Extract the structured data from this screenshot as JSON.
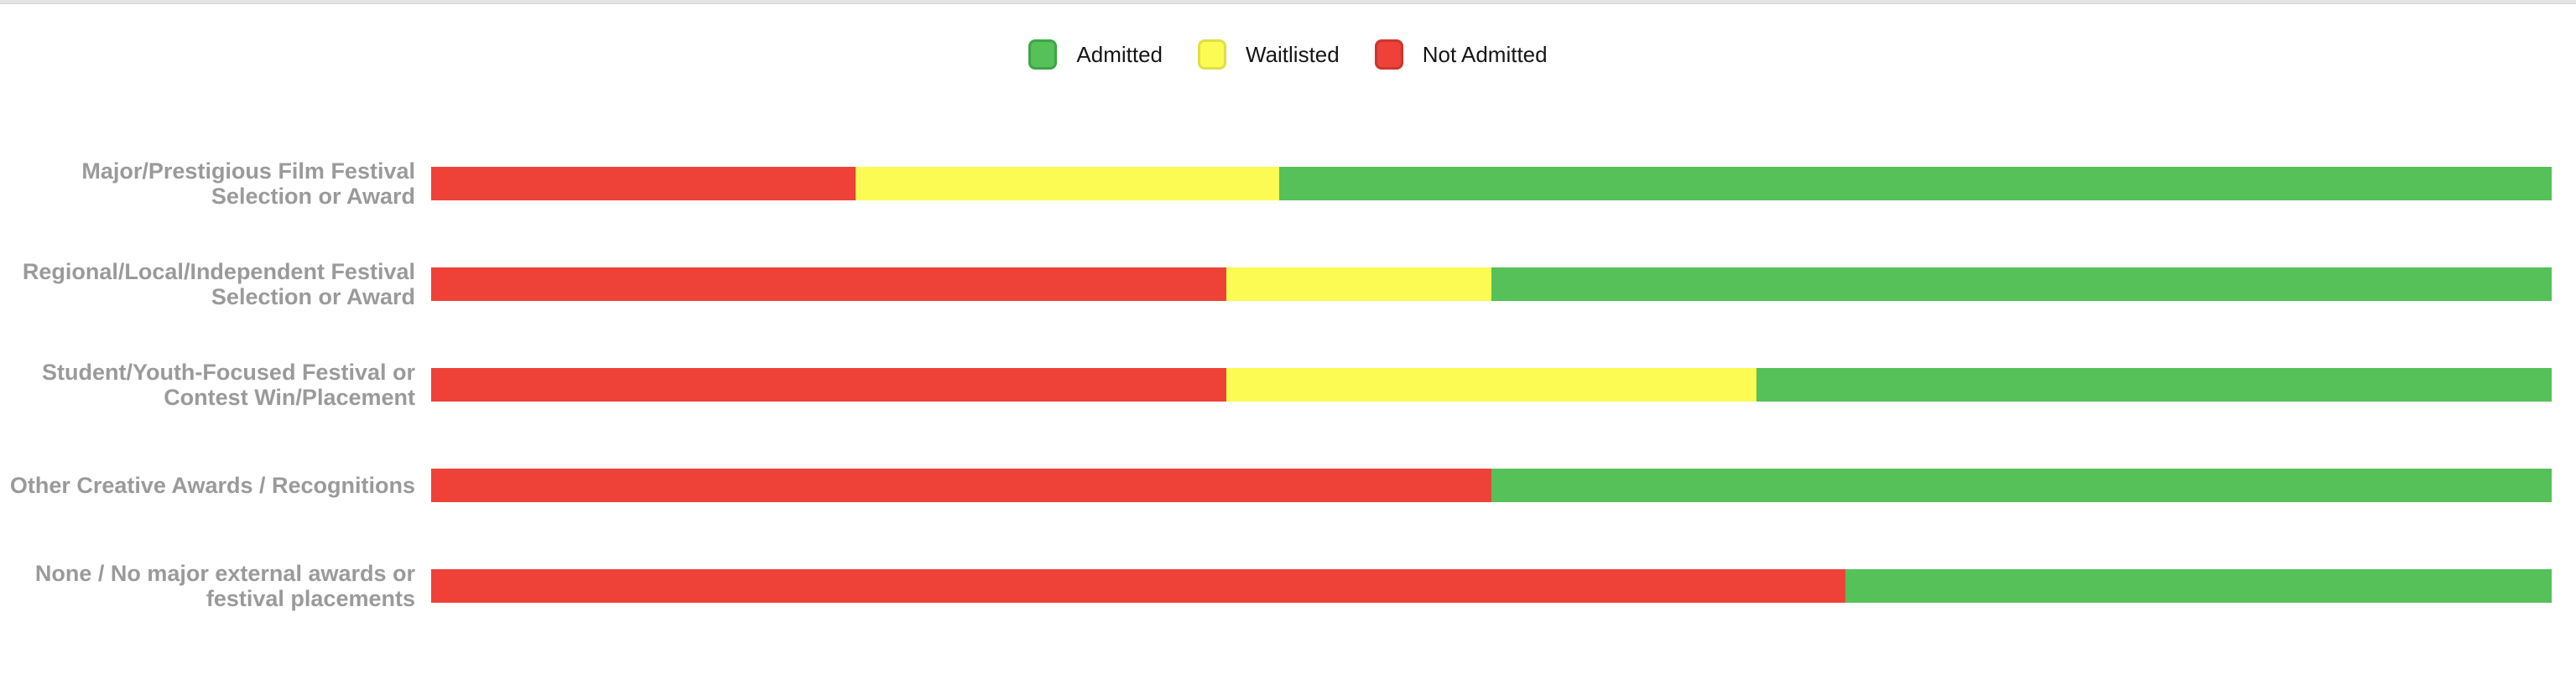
{
  "page": {
    "background": "#ffffff",
    "top_strip_color": "#e3e3e3"
  },
  "legend": {
    "position": "top-center",
    "items": [
      {
        "label": "Admitted",
        "color": "#55C158",
        "border_color": "#3DA547"
      },
      {
        "label": "Waitlisted",
        "color": "#FBFB54",
        "border_color": "#DFDF45"
      },
      {
        "label": "Not Admitted",
        "color": "#EE4238",
        "border_color": "#CE352C"
      }
    ]
  },
  "chart_data": {
    "type": "bar",
    "subtype": "horizontal_stacked_percent",
    "title": "",
    "xlabel": "",
    "ylabel": "",
    "x_range_percent": [
      0,
      100
    ],
    "grid": false,
    "legend_position": "top-center",
    "stack_order_left_to_right": [
      "Not Admitted",
      "Waitlisted",
      "Admitted"
    ],
    "categories": [
      "Major/Prestigious Film Festival Selection or Award",
      "Regional/Local/Independent Festival Selection or Award",
      "Student/Youth-Focused Festival or Contest Win/Placement",
      "Other Creative Awards / Recognitions",
      "None / No major external awards or festival placements"
    ],
    "categories_lines": [
      [
        "Major/Prestigious Film Festival",
        "Selection or Award"
      ],
      [
        "Regional/Local/Independent Festival",
        "Selection or Award"
      ],
      [
        "Student/Youth-Focused Festival or",
        "Contest Win/Placement"
      ],
      [
        "Other Creative Awards / Recognitions"
      ],
      [
        "None / No major external awards or",
        "festival placements"
      ]
    ],
    "series": [
      {
        "name": "Not Admitted",
        "color": "#EE4238",
        "values": [
          20,
          37.5,
          37.5,
          50,
          66.7
        ]
      },
      {
        "name": "Waitlisted",
        "color": "#FBFB54",
        "values": [
          20,
          12.5,
          25,
          0,
          0
        ]
      },
      {
        "name": "Admitted",
        "color": "#55C158",
        "values": [
          60,
          50,
          37.5,
          50,
          33.3
        ]
      }
    ]
  }
}
